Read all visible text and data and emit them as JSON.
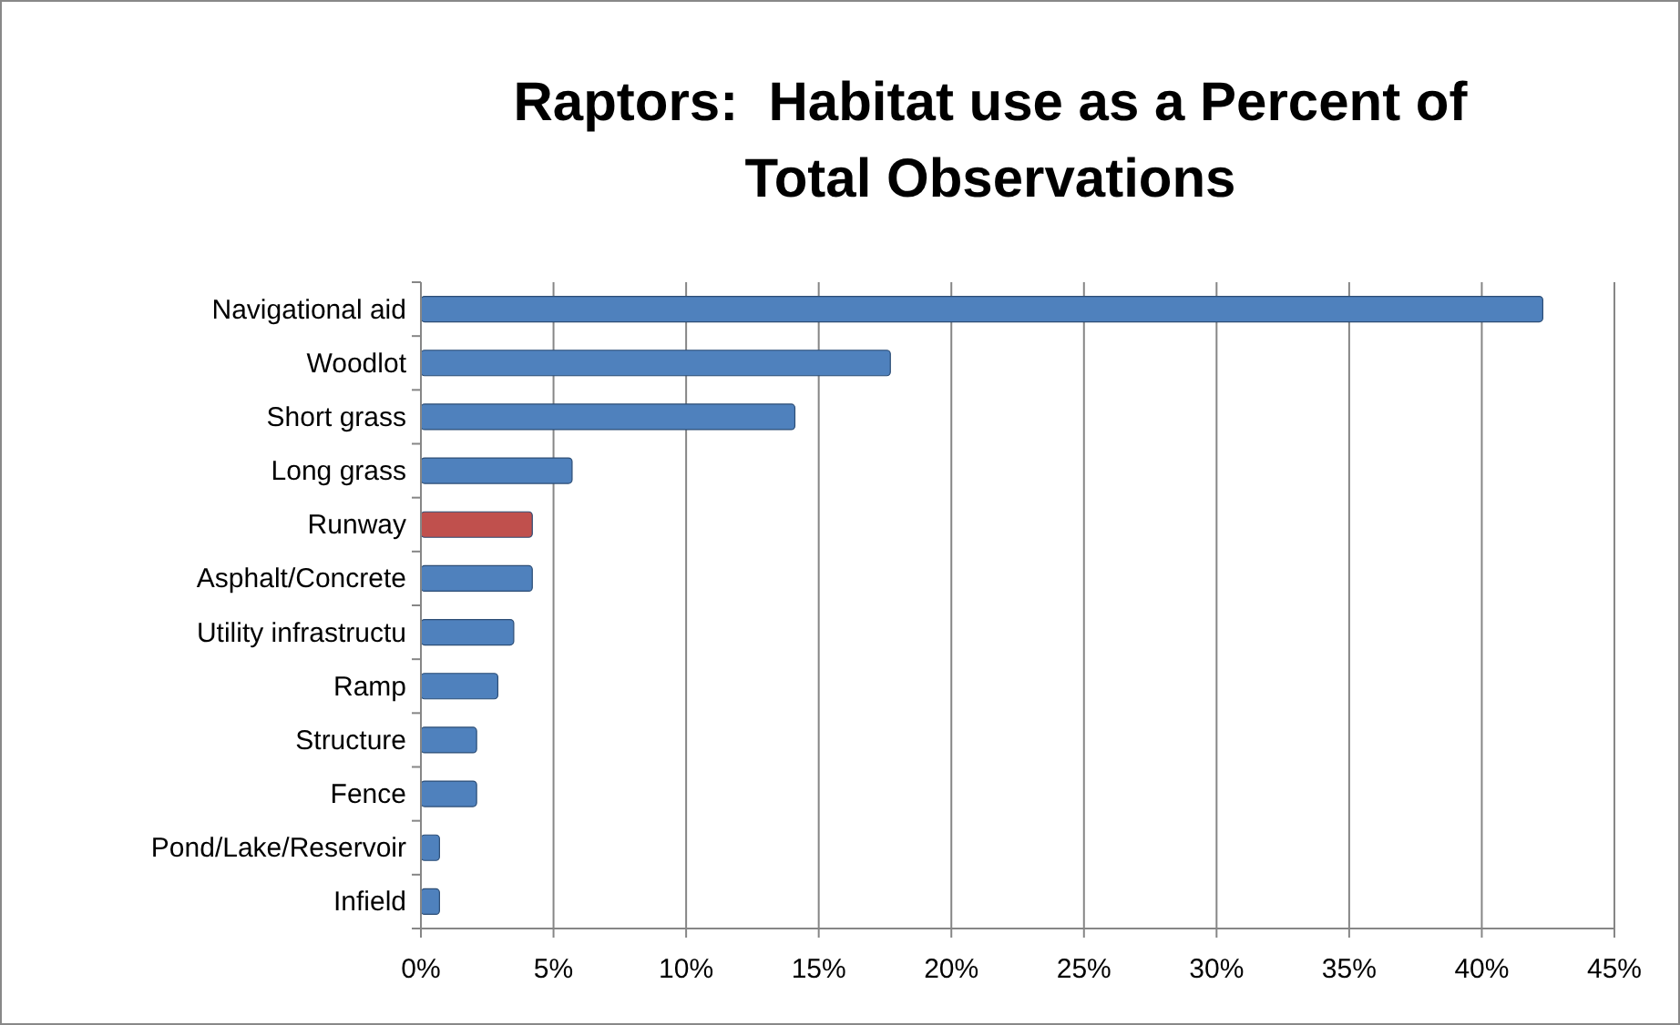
{
  "chart_data": {
    "type": "bar",
    "orientation": "horizontal",
    "title": "Raptors:  Habitat use as a Percent of Total Observations",
    "categories": [
      "Navigational aid",
      "Woodlot",
      "Short grass",
      "Long grass",
      "Runway",
      "Asphalt/Concrete",
      "Utility infrastructu",
      "Ramp",
      "Structure",
      "Fence",
      "Pond/Lake/Reservoir",
      "Infield"
    ],
    "values": [
      42.3,
      17.7,
      14.1,
      5.7,
      4.2,
      4.2,
      3.5,
      2.9,
      2.1,
      2.1,
      0.7,
      0.7
    ],
    "colors": [
      "#4f81bd",
      "#4f81bd",
      "#4f81bd",
      "#4f81bd",
      "#c0504d",
      "#4f81bd",
      "#4f81bd",
      "#4f81bd",
      "#4f81bd",
      "#4f81bd",
      "#4f81bd",
      "#4f81bd"
    ],
    "xlim": [
      0,
      45
    ],
    "xticks": [
      {
        "value": 0,
        "label": "0%"
      },
      {
        "value": 5,
        "label": "5%"
      },
      {
        "value": 10,
        "label": "10%"
      },
      {
        "value": 15,
        "label": "15%"
      },
      {
        "value": 20,
        "label": "20%"
      },
      {
        "value": 25,
        "label": "25%"
      },
      {
        "value": 30,
        "label": "30%"
      },
      {
        "value": 35,
        "label": "35%"
      },
      {
        "value": 40,
        "label": "40%"
      },
      {
        "value": 45,
        "label": "45%"
      }
    ],
    "grid": "x"
  }
}
